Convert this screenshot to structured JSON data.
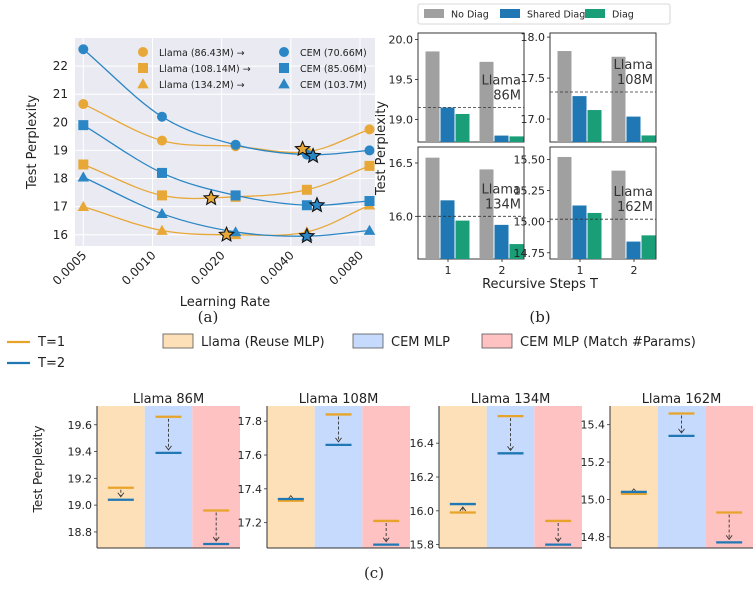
{
  "captions": {
    "a": "(a)",
    "b": "(b)",
    "c": "(c)"
  },
  "colors": {
    "llama": "#e8a838",
    "cem": "#2a86c4",
    "plot_bg": "#eaeaf2",
    "no_diag": "#a0a0a0",
    "shared_diag": "#1f77b4",
    "diag": "#1a9e77",
    "t1": "#e8a42a",
    "t2": "#1f77b4",
    "reuse_mlp": "#fde0b8",
    "cem_mlp": "#c6dafd",
    "cem_match": "#ffc2c2"
  },
  "chart_data": [
    {
      "type": "line",
      "panel": "a",
      "xlabel": "Learning Rate",
      "ylabel": "Test Perplexity",
      "xscale": "log",
      "x_ticks": [
        "0.0005",
        "0.0010",
        "0.0020",
        "0.0040",
        "0.0080"
      ],
      "y_ticks": [
        16,
        17,
        18,
        19,
        20,
        21,
        22
      ],
      "ylim": [
        15.6,
        23.0
      ],
      "grid": true,
      "legend_position": "top-right",
      "x": [
        0.0005,
        0.0011,
        0.0023,
        0.0047,
        0.0088
      ],
      "series": [
        {
          "name": "Llama (86.43M)",
          "family": "llama",
          "marker": "circle",
          "values": [
            20.65,
            19.35,
            19.15,
            18.95,
            19.75
          ],
          "best": [
            0.0045,
            19.05
          ]
        },
        {
          "name": "Llama (108.14M)",
          "family": "llama",
          "marker": "square",
          "values": [
            18.5,
            17.4,
            17.35,
            17.6,
            18.45
          ],
          "best": [
            0.0018,
            17.3
          ]
        },
        {
          "name": "Llama (134.2M)",
          "family": "llama",
          "marker": "triangle",
          "values": [
            17.0,
            16.15,
            16.0,
            16.1,
            17.05
          ],
          "best": [
            0.0021,
            16.0
          ]
        },
        {
          "name": "CEM (70.66M)",
          "family": "cem",
          "marker": "circle",
          "values": [
            22.6,
            20.2,
            19.2,
            18.85,
            19.0
          ],
          "best": [
            0.005,
            18.8
          ]
        },
        {
          "name": "CEM (85.06M)",
          "family": "cem",
          "marker": "square",
          "values": [
            19.9,
            18.2,
            17.4,
            17.05,
            17.2
          ],
          "best": [
            0.0052,
            17.05
          ]
        },
        {
          "name": "CEM (103.7M)",
          "family": "cem",
          "marker": "triangle",
          "values": [
            18.05,
            16.75,
            16.1,
            15.95,
            16.15
          ],
          "best": [
            0.0047,
            15.95
          ]
        }
      ],
      "legend_arrow": "→"
    },
    {
      "type": "bar",
      "panel": "b",
      "xlabel": "Recursive Steps T",
      "ylabel": "Test Perplexity",
      "legend": [
        "No Diag",
        "Shared Diag",
        "Diag"
      ],
      "categories": [
        "1",
        "2"
      ],
      "subplots": [
        {
          "label": "Llama\n86M",
          "baseline": 19.15,
          "ylim": [
            18.72,
            20.08
          ],
          "ticks": [
            19.0,
            19.5,
            20.0
          ],
          "tick_labels": [
            "19.0",
            "19.5",
            "20.0"
          ],
          "series": [
            {
              "name": "No Diag",
              "values": [
                19.85,
                19.72
              ]
            },
            {
              "name": "Shared Diag",
              "values": [
                19.15,
                18.8
              ]
            },
            {
              "name": "Diag",
              "values": [
                19.07,
                18.79
              ]
            }
          ]
        },
        {
          "label": "Llama\n108M",
          "baseline": 17.33,
          "ylim": [
            16.72,
            18.05
          ],
          "ticks": [
            17.0,
            17.5,
            18.0
          ],
          "tick_labels": [
            "17.0",
            "17.5",
            "18.0"
          ],
          "series": [
            {
              "name": "No Diag",
              "values": [
                17.83,
                17.76
              ]
            },
            {
              "name": "Shared Diag",
              "values": [
                17.28,
                17.03
              ]
            },
            {
              "name": "Diag",
              "values": [
                17.11,
                16.8
              ]
            }
          ]
        },
        {
          "label": "Llama\n134M",
          "baseline": 16.0,
          "ylim": [
            15.6,
            16.65
          ],
          "ticks": [
            16.0,
            16.5
          ],
          "tick_labels": [
            "16.0",
            "16.5"
          ],
          "series": [
            {
              "name": "No Diag",
              "values": [
                16.55,
                16.44
              ]
            },
            {
              "name": "Shared Diag",
              "values": [
                16.15,
                15.92
              ]
            },
            {
              "name": "Diag",
              "values": [
                15.96,
                15.74
              ]
            }
          ]
        },
        {
          "label": "Llama\n162M",
          "baseline": 15.02,
          "ylim": [
            14.7,
            15.6
          ],
          "ticks": [
            14.75,
            15.0,
            15.25,
            15.5
          ],
          "tick_labels": [
            "14.75",
            "15.00",
            "15.25",
            "15.50"
          ],
          "series": [
            {
              "name": "No Diag",
              "values": [
                15.52,
                15.41
              ]
            },
            {
              "name": "Shared Diag",
              "values": [
                15.13,
                14.84
              ]
            },
            {
              "name": "Diag",
              "values": [
                15.07,
                14.89
              ]
            }
          ]
        }
      ]
    },
    {
      "type": "bar",
      "panel": "c",
      "ylabel": "Test Perplexity",
      "line_legend": [
        "T=1",
        "T=2"
      ],
      "region_legend": [
        "Llama (Reuse MLP)",
        "CEM MLP",
        "CEM MLP (Match #Params)"
      ],
      "subplots": [
        {
          "title": "Llama 86M",
          "ylim": [
            18.68,
            19.74
          ],
          "ticks": [
            18.8,
            19.0,
            19.2,
            19.4,
            19.6
          ],
          "tick_labels": [
            "18.8",
            "19.0",
            "19.2",
            "19.4",
            "19.6"
          ],
          "groups": [
            {
              "t1": 19.13,
              "t2": 19.04
            },
            {
              "t1": 19.66,
              "t2": 19.39
            },
            {
              "t1": 18.96,
              "t2": 18.71
            }
          ]
        },
        {
          "title": "Llama 108M",
          "ylim": [
            17.05,
            17.89
          ],
          "ticks": [
            17.2,
            17.4,
            17.6,
            17.8
          ],
          "tick_labels": [
            "17.2",
            "17.4",
            "17.6",
            "17.8"
          ],
          "groups": [
            {
              "t1": 17.33,
              "t2": 17.34
            },
            {
              "t1": 17.84,
              "t2": 17.66
            },
            {
              "t1": 17.21,
              "t2": 17.07
            }
          ]
        },
        {
          "title": "Llama 134M",
          "ylim": [
            15.78,
            16.62
          ],
          "ticks": [
            15.8,
            16.0,
            16.2,
            16.4
          ],
          "tick_labels": [
            "15.8",
            "16.0",
            "16.2",
            "16.4"
          ],
          "groups": [
            {
              "t1": 15.99,
              "t2": 16.04
            },
            {
              "t1": 16.56,
              "t2": 16.34
            },
            {
              "t1": 15.94,
              "t2": 15.8
            }
          ]
        },
        {
          "title": "Llama 162M",
          "ylim": [
            14.74,
            15.5
          ],
          "ticks": [
            14.8,
            15.0,
            15.2,
            15.4
          ],
          "tick_labels": [
            "14.8",
            "15.0",
            "15.2",
            "15.4"
          ],
          "groups": [
            {
              "t1": 15.03,
              "t2": 15.04
            },
            {
              "t1": 15.46,
              "t2": 15.34
            },
            {
              "t1": 14.93,
              "t2": 14.77
            }
          ]
        }
      ]
    }
  ]
}
